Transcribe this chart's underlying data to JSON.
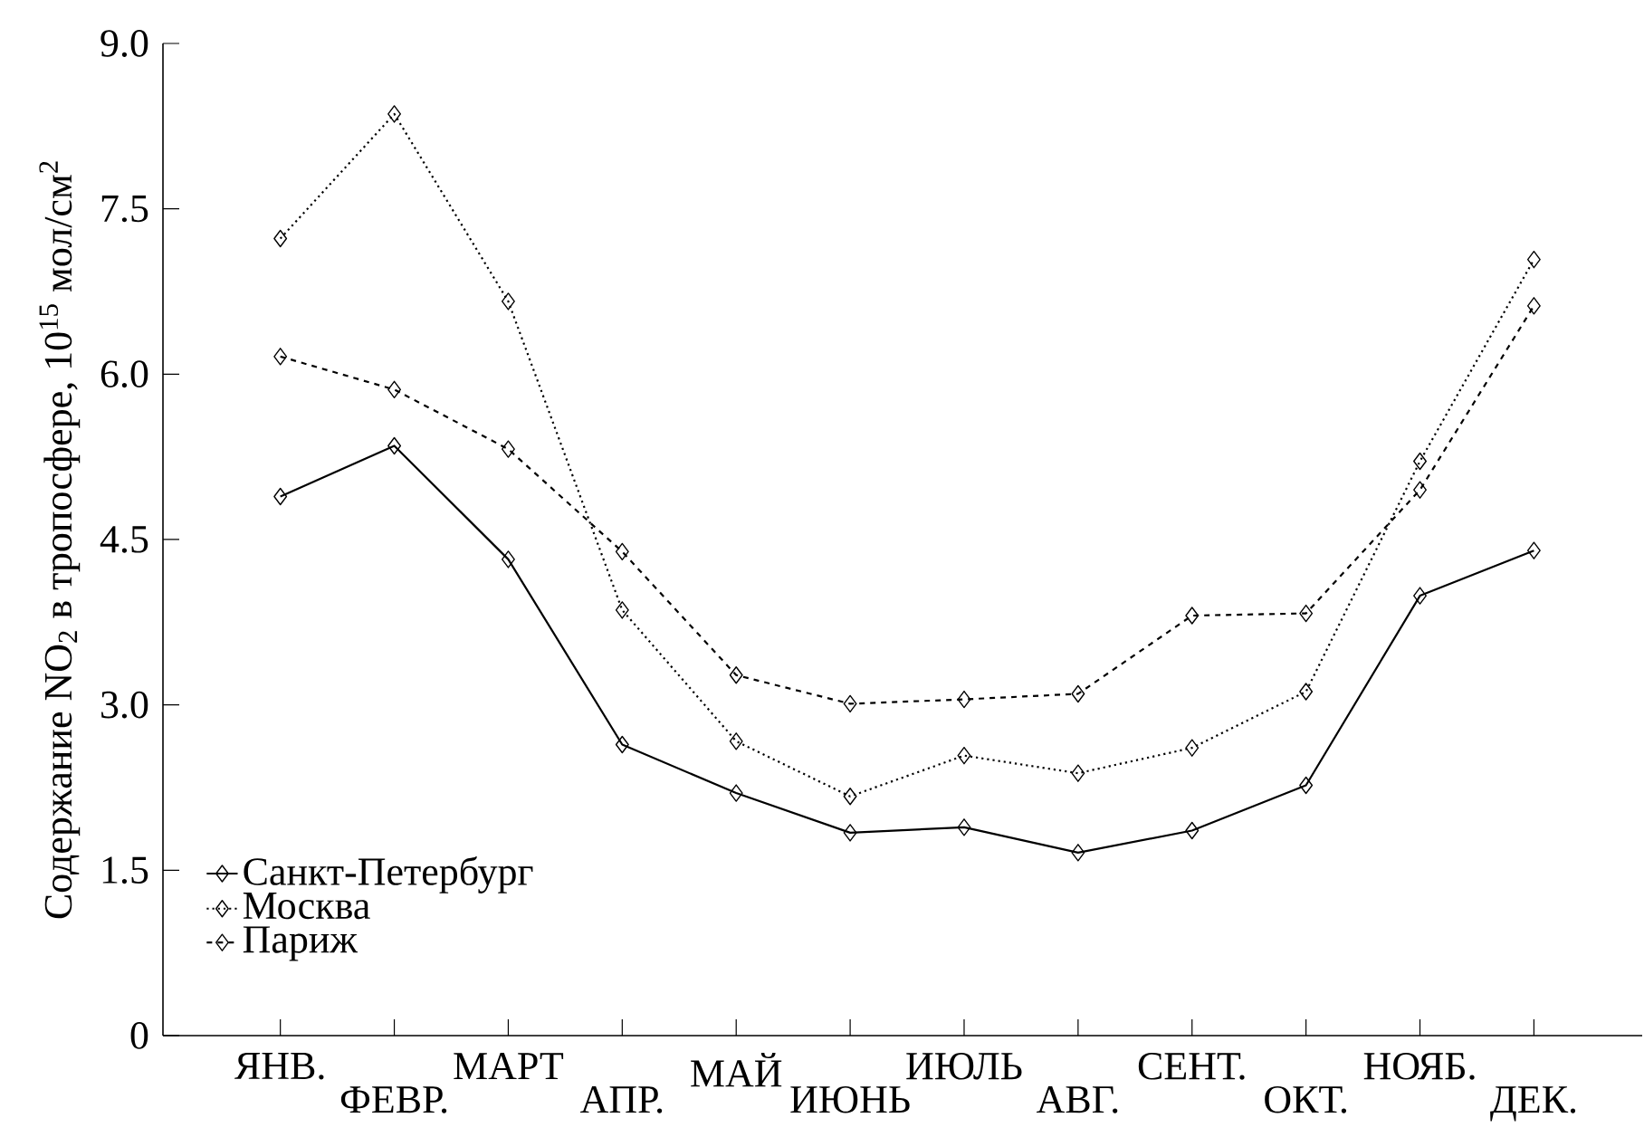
{
  "chart_data": {
    "type": "line",
    "ylabel": "Содержание NO$_{2}$ в тропосфере, 10$^{15}$ мол/см$^{2}$",
    "categories": [
      "ЯНВ.",
      "ФЕВР.",
      "МАРТ",
      "АПР.",
      "МАЙ",
      "ИЮНЬ",
      "ИЮЛЬ",
      "АВГ.",
      "СЕНТ.",
      "ОКТ.",
      "НОЯБ.",
      "ДЕК."
    ],
    "series": [
      {
        "name": "Санкт-Петербург",
        "color": "#000000",
        "line_style": "solid",
        "values": [
          4.89,
          5.35,
          4.32,
          2.64,
          2.2,
          1.84,
          1.89,
          1.66,
          1.86,
          2.27,
          3.99,
          4.4
        ]
      },
      {
        "name": "Москва",
        "color": "#000000",
        "line_style": "dotted",
        "values": [
          7.23,
          8.36,
          6.66,
          3.86,
          2.67,
          2.17,
          2.54,
          2.38,
          2.61,
          3.12,
          5.21,
          7.04
        ]
      },
      {
        "name": "Париж",
        "color": "#000000",
        "line_style": "dashed",
        "values": [
          6.16,
          5.86,
          5.32,
          4.39,
          3.27,
          3.01,
          3.05,
          3.1,
          3.81,
          3.83,
          4.95,
          6.62
        ]
      }
    ],
    "ylim": [
      0,
      9
    ],
    "yticks": [
      0,
      1.5,
      {
        "value": 3,
        "label": "3.0"
      },
      {
        "value": 4.5,
        "label": "4.5"
      },
      {
        "value": 6,
        "label": "6.0"
      },
      {
        "value": 7.5,
        "label": "7.5"
      },
      {
        "value": 9,
        "label": "9.0"
      }
    ],
    "marker": "diamond",
    "grid": false,
    "legend": "bottom left"
  }
}
